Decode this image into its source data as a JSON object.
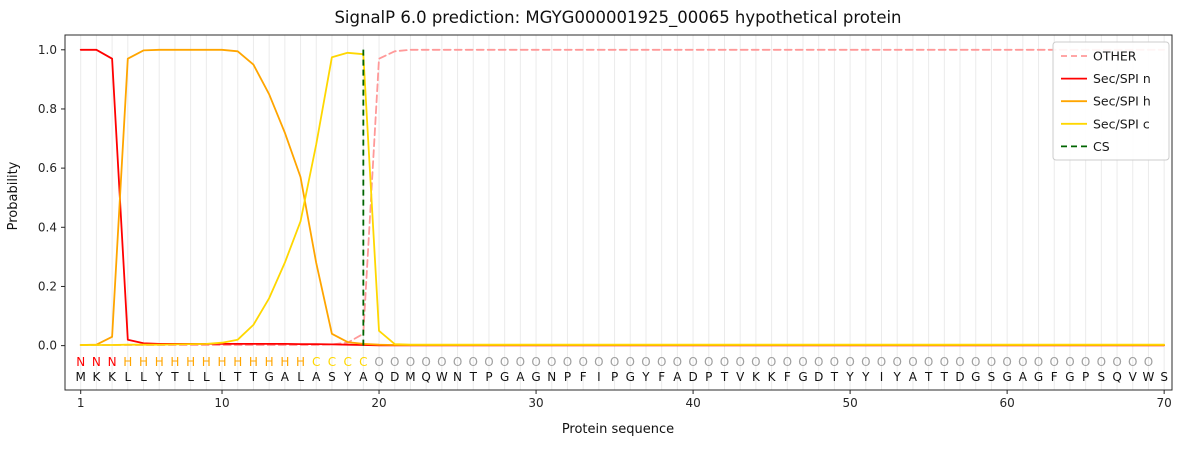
{
  "chart_data": {
    "type": "line",
    "title": "SignalP 6.0 prediction: MGYG000001925_00065 hypothetical protein",
    "xlabel": "Protein sequence",
    "ylabel": "Probability",
    "xlim": [
      0,
      70.5
    ],
    "ylim": [
      -0.15,
      1.05
    ],
    "xticks": [
      1,
      10,
      20,
      30,
      40,
      50,
      60,
      70
    ],
    "yticks": [
      "0.0",
      "0.2",
      "0.4",
      "0.6",
      "0.8",
      "1.0"
    ],
    "grid": "vertical-per-residue",
    "legend_position": "upper right",
    "colors": {
      "grid": "#ebebeb",
      "frame": "#2b2b2b",
      "tick_text": "#262626"
    },
    "series": [
      {
        "key": "other",
        "name": "OTHER",
        "color": "#ff9999",
        "dashed": true,
        "values": [
          0.002,
          0.002,
          0.002,
          0.002,
          0.002,
          0.002,
          0.002,
          0.002,
          0.002,
          0.002,
          0.002,
          0.002,
          0.002,
          0.002,
          0.002,
          0.002,
          0.004,
          0.01,
          0.04,
          0.97,
          0.995,
          1.0,
          1.0,
          1.0,
          1.0,
          1.0,
          1.0,
          1.0,
          1.0,
          1.0,
          1.0,
          1.0,
          1.0,
          1.0,
          1.0,
          1.0,
          1.0,
          1.0,
          1.0,
          1.0,
          1.0,
          1.0,
          1.0,
          1.0,
          1.0,
          1.0,
          1.0,
          1.0,
          1.0,
          1.0,
          1.0,
          1.0,
          1.0,
          1.0,
          1.0,
          1.0,
          1.0,
          1.0,
          1.0,
          1.0,
          1.0,
          1.0,
          1.0,
          1.0,
          1.0,
          1.0,
          1.0,
          1.0,
          1.0,
          1.0
        ]
      },
      {
        "key": "sec-spi-n",
        "name": "Sec/SPI n",
        "color": "#ff0000",
        "dashed": false,
        "values": [
          1.0,
          1.0,
          0.97,
          0.02,
          0.008,
          0.006,
          0.006,
          0.006,
          0.006,
          0.006,
          0.006,
          0.006,
          0.006,
          0.006,
          0.005,
          0.005,
          0.004,
          0.003,
          0.002,
          0.001,
          0.001,
          0.001,
          0.001,
          0.001,
          0.001,
          0.001,
          0.001,
          0.001,
          0.001,
          0.001,
          0.001,
          0.001,
          0.001,
          0.001,
          0.001,
          0.001,
          0.001,
          0.001,
          0.001,
          0.001,
          0.001,
          0.001,
          0.001,
          0.001,
          0.001,
          0.001,
          0.001,
          0.001,
          0.001,
          0.001,
          0.001,
          0.001,
          0.001,
          0.001,
          0.001,
          0.001,
          0.001,
          0.001,
          0.001,
          0.001,
          0.001,
          0.001,
          0.001,
          0.001,
          0.001,
          0.001,
          0.001,
          0.001,
          0.001,
          0.001
        ]
      },
      {
        "key": "sec-spi-h",
        "name": "Sec/SPI h",
        "color": "#ffa500",
        "dashed": false,
        "values": [
          0.002,
          0.003,
          0.03,
          0.97,
          0.998,
          1.0,
          1.0,
          1.0,
          1.0,
          1.0,
          0.995,
          0.95,
          0.85,
          0.72,
          0.57,
          0.28,
          0.04,
          0.012,
          0.006,
          0.003,
          0.002,
          0.002,
          0.002,
          0.002,
          0.002,
          0.002,
          0.002,
          0.002,
          0.002,
          0.002,
          0.002,
          0.002,
          0.002,
          0.002,
          0.002,
          0.002,
          0.002,
          0.002,
          0.002,
          0.002,
          0.002,
          0.002,
          0.002,
          0.002,
          0.002,
          0.002,
          0.002,
          0.002,
          0.002,
          0.002,
          0.002,
          0.002,
          0.002,
          0.002,
          0.002,
          0.002,
          0.002,
          0.002,
          0.002,
          0.002,
          0.002,
          0.002,
          0.002,
          0.002,
          0.002,
          0.002,
          0.002,
          0.002,
          0.002,
          0.002
        ]
      },
      {
        "key": "sec-spi-c",
        "name": "Sec/SPI c",
        "color": "#ffd700",
        "dashed": false,
        "values": [
          0.002,
          0.002,
          0.002,
          0.003,
          0.003,
          0.003,
          0.004,
          0.005,
          0.006,
          0.01,
          0.02,
          0.07,
          0.16,
          0.28,
          0.42,
          0.68,
          0.975,
          0.99,
          0.985,
          0.05,
          0.005,
          0.003,
          0.003,
          0.003,
          0.003,
          0.003,
          0.003,
          0.003,
          0.003,
          0.003,
          0.003,
          0.003,
          0.003,
          0.003,
          0.003,
          0.003,
          0.003,
          0.003,
          0.003,
          0.003,
          0.003,
          0.003,
          0.003,
          0.003,
          0.003,
          0.003,
          0.003,
          0.003,
          0.003,
          0.003,
          0.003,
          0.003,
          0.003,
          0.003,
          0.003,
          0.003,
          0.003,
          0.003,
          0.003,
          0.003,
          0.003,
          0.003,
          0.003,
          0.003,
          0.003,
          0.003,
          0.003,
          0.003,
          0.003,
          0.003
        ]
      }
    ],
    "cs_line": {
      "name": "CS",
      "x": 19,
      "color": "#006400",
      "dashed": true
    },
    "legend": [
      {
        "label": "OTHER",
        "color": "#ff9999",
        "dashed": true
      },
      {
        "label": "Sec/SPI n",
        "color": "#ff0000",
        "dashed": false
      },
      {
        "label": "Sec/SPI h",
        "color": "#ffa500",
        "dashed": false
      },
      {
        "label": "Sec/SPI c",
        "color": "#ffd700",
        "dashed": false
      },
      {
        "label": "CS",
        "color": "#006400",
        "dashed": true
      }
    ],
    "sequence": {
      "residues": "MKKLLYTLLLTTGALASYAQDMQWNTPGAGNPFIPGYFADPTVKKFGDTYYIYATTDGSGAGFGPSQVWS",
      "region_labels": "NNNHHHHHHHHHHHHCCCCOOOOOOOOOOOOOOOOOOOOOOOOOOOOOOOOOOOOOOOOOOOOOOOOOO",
      "region_colors": {
        "N": "#ff0000",
        "H": "#ffa500",
        "C": "#ffd700",
        "O": "#a0a0a0"
      },
      "residue_color": "#111111"
    }
  }
}
